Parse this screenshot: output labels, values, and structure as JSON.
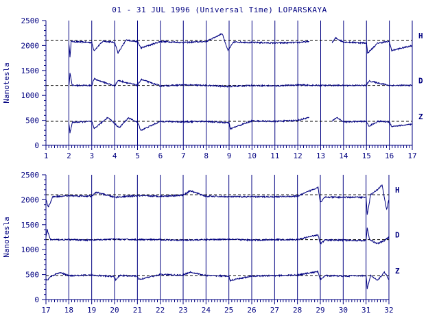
{
  "title": "01 - 31 JUL 1996 (Universal Time) LOPARSKAYA",
  "chart_data": [
    {
      "type": "line",
      "ylabel": "Nanotesla",
      "xlim": [
        1,
        17
      ],
      "ylim": [
        0,
        2500
      ],
      "y_ticks": [
        0,
        500,
        1000,
        1500,
        2000,
        2500
      ],
      "x_ticks": [
        1,
        2,
        3,
        4,
        5,
        6,
        7,
        8,
        9,
        10,
        11,
        12,
        13,
        14,
        15,
        16,
        17
      ],
      "grid": "vertical day lines",
      "baselines": [
        2100,
        1200,
        480
      ],
      "series": [
        {
          "name": "H",
          "baseline": 2100,
          "points": [
            [
              2.0,
              2050
            ],
            [
              2.05,
              1780
            ],
            [
              2.1,
              2080
            ],
            [
              3.0,
              2060
            ],
            [
              3.1,
              1900
            ],
            [
              3.5,
              2090
            ],
            [
              4.0,
              2060
            ],
            [
              4.15,
              1850
            ],
            [
              4.5,
              2110
            ],
            [
              5.0,
              2080
            ],
            [
              5.15,
              1950
            ],
            [
              6.0,
              2080
            ],
            [
              7.0,
              2060
            ],
            [
              8.0,
              2080
            ],
            [
              8.7,
              2240
            ],
            [
              8.95,
              1900
            ],
            [
              9.2,
              2070
            ],
            [
              10.0,
              2060
            ],
            [
              11.0,
              2050
            ],
            [
              12.0,
              2060
            ],
            [
              12.5,
              2080
            ]
          ],
          "gaps": [
            [
              12.7,
              13.5
            ]
          ],
          "after_gap": [
            [
              13.5,
              2060
            ],
            [
              13.65,
              2150
            ],
            [
              14.0,
              2070
            ],
            [
              15.0,
              2050
            ],
            [
              15.05,
              1850
            ],
            [
              15.5,
              2050
            ],
            [
              16.0,
              2080
            ],
            [
              16.1,
              1900
            ],
            [
              17.0,
              2000
            ]
          ]
        },
        {
          "name": "D",
          "baseline": 1200,
          "points": [
            [
              2.0,
              1150
            ],
            [
              2.05,
              1450
            ],
            [
              2.15,
              1200
            ],
            [
              3.0,
              1200
            ],
            [
              3.1,
              1330
            ],
            [
              4.0,
              1190
            ],
            [
              4.15,
              1300
            ],
            [
              5.0,
              1200
            ],
            [
              5.15,
              1320
            ],
            [
              6.0,
              1190
            ],
            [
              7.0,
              1210
            ],
            [
              8.0,
              1200
            ],
            [
              9.0,
              1180
            ],
            [
              10.0,
              1200
            ],
            [
              11.0,
              1190
            ],
            [
              12.0,
              1210
            ],
            [
              12.7,
              1200
            ],
            [
              14.0,
              1200
            ],
            [
              15.0,
              1200
            ],
            [
              15.1,
              1290
            ],
            [
              16.0,
              1200
            ],
            [
              17.0,
              1200
            ]
          ],
          "gaps": []
        },
        {
          "name": "Z",
          "baseline": 480,
          "points": [
            [
              2.0,
              450
            ],
            [
              2.05,
              250
            ],
            [
              2.15,
              460
            ],
            [
              3.0,
              480
            ],
            [
              3.1,
              330
            ],
            [
              3.7,
              560
            ],
            [
              4.0,
              440
            ],
            [
              4.2,
              350
            ],
            [
              4.6,
              550
            ],
            [
              5.0,
              460
            ],
            [
              5.15,
              300
            ],
            [
              6.0,
              480
            ],
            [
              7.0,
              470
            ],
            [
              8.0,
              480
            ],
            [
              9.0,
              450
            ],
            [
              9.05,
              330
            ],
            [
              10.0,
              490
            ],
            [
              11.0,
              480
            ],
            [
              12.0,
              500
            ],
            [
              12.5,
              560
            ]
          ],
          "gaps": [
            [
              12.7,
              13.5
            ]
          ],
          "after_gap": [
            [
              13.5,
              480
            ],
            [
              13.7,
              560
            ],
            [
              14.0,
              470
            ],
            [
              15.0,
              480
            ],
            [
              15.1,
              380
            ],
            [
              15.5,
              480
            ],
            [
              16.0,
              470
            ],
            [
              16.1,
              380
            ],
            [
              17.0,
              420
            ]
          ]
        }
      ],
      "channel_labels": [
        "H",
        "D",
        "Z"
      ]
    },
    {
      "type": "line",
      "ylabel": "Nanotesla",
      "xlim": [
        17,
        32
      ],
      "ylim": [
        0,
        2500
      ],
      "y_ticks": [
        0,
        500,
        1000,
        1500,
        2000,
        2500
      ],
      "x_ticks": [
        17,
        18,
        19,
        20,
        21,
        22,
        23,
        24,
        25,
        26,
        27,
        28,
        29,
        30,
        31,
        32
      ],
      "grid": "vertical day lines",
      "baselines": [
        2100,
        1200,
        480
      ],
      "series": [
        {
          "name": "H",
          "baseline": 2100,
          "points": [
            [
              17.0,
              2000
            ],
            [
              17.1,
              1850
            ],
            [
              17.3,
              2060
            ],
            [
              18.0,
              2080
            ],
            [
              19.0,
              2070
            ],
            [
              19.2,
              2150
            ],
            [
              20.0,
              2050
            ],
            [
              21.0,
              2080
            ],
            [
              22.0,
              2070
            ],
            [
              23.0,
              2090
            ],
            [
              23.3,
              2180
            ],
            [
              24.0,
              2070
            ],
            [
              25.0,
              2060
            ],
            [
              26.0,
              2060
            ],
            [
              27.0,
              2060
            ],
            [
              28.0,
              2070
            ],
            [
              28.9,
              2250
            ],
            [
              29.0,
              1950
            ],
            [
              29.2,
              2050
            ],
            [
              30.0,
              2050
            ],
            [
              31.0,
              2050
            ],
            [
              31.05,
              1700
            ],
            [
              31.2,
              2100
            ],
            [
              31.5,
              2200
            ],
            [
              31.7,
              2300
            ],
            [
              31.9,
              1800
            ],
            [
              32.0,
              2000
            ]
          ]
        },
        {
          "name": "D",
          "baseline": 1200,
          "points": [
            [
              17.0,
              1250
            ],
            [
              17.05,
              1400
            ],
            [
              17.2,
              1200
            ],
            [
              18.0,
              1200
            ],
            [
              19.0,
              1190
            ],
            [
              20.0,
              1210
            ],
            [
              21.0,
              1200
            ],
            [
              22.0,
              1200
            ],
            [
              23.0,
              1190
            ],
            [
              24.0,
              1200
            ],
            [
              25.0,
              1210
            ],
            [
              26.0,
              1190
            ],
            [
              27.0,
              1200
            ],
            [
              28.0,
              1200
            ],
            [
              28.9,
              1300
            ],
            [
              29.0,
              1120
            ],
            [
              29.2,
              1190
            ],
            [
              30.0,
              1190
            ],
            [
              31.0,
              1180
            ],
            [
              31.05,
              1450
            ],
            [
              31.15,
              1200
            ],
            [
              31.5,
              1120
            ],
            [
              31.8,
              1180
            ],
            [
              32.0,
              1250
            ]
          ]
        },
        {
          "name": "Z",
          "baseline": 480,
          "points": [
            [
              17.0,
              420
            ],
            [
              17.05,
              380
            ],
            [
              17.2,
              460
            ],
            [
              17.6,
              540
            ],
            [
              18.0,
              480
            ],
            [
              19.0,
              490
            ],
            [
              20.0,
              460
            ],
            [
              20.05,
              380
            ],
            [
              20.2,
              480
            ],
            [
              21.0,
              470
            ],
            [
              21.05,
              400
            ],
            [
              22.0,
              500
            ],
            [
              23.0,
              490
            ],
            [
              23.3,
              550
            ],
            [
              24.0,
              480
            ],
            [
              25.0,
              470
            ],
            [
              25.05,
              380
            ],
            [
              26.0,
              470
            ],
            [
              27.0,
              480
            ],
            [
              28.0,
              490
            ],
            [
              28.9,
              560
            ],
            [
              29.0,
              400
            ],
            [
              29.2,
              480
            ],
            [
              30.0,
              470
            ],
            [
              31.0,
              480
            ],
            [
              31.05,
              220
            ],
            [
              31.2,
              480
            ],
            [
              31.5,
              380
            ],
            [
              31.8,
              550
            ],
            [
              32.0,
              400
            ]
          ]
        }
      ],
      "channel_labels": [
        "H",
        "D",
        "Z"
      ]
    }
  ],
  "colors": {
    "axis": "#000080",
    "trace": "#000080",
    "dashed": "#000000",
    "text": "#000080"
  }
}
